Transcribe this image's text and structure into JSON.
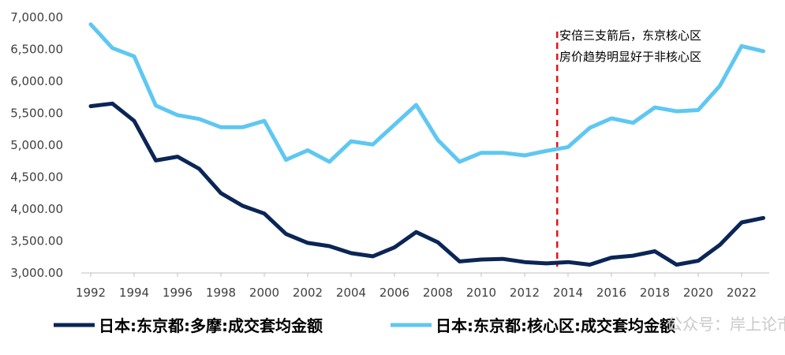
{
  "chart_data": {
    "type": "line",
    "x": [
      1992,
      1993,
      1994,
      1995,
      1996,
      1997,
      1998,
      1999,
      2000,
      2001,
      2002,
      2003,
      2004,
      2005,
      2006,
      2007,
      2008,
      2009,
      2010,
      2011,
      2012,
      2013,
      2014,
      2015,
      2016,
      2017,
      2018,
      2019,
      2020,
      2021,
      2022,
      2023
    ],
    "series": [
      {
        "name": "日本:东京都:多摩:成交套均金额",
        "color": "#0b2556",
        "values": [
          5610,
          5650,
          5380,
          4760,
          4820,
          4630,
          4250,
          4050,
          3930,
          3610,
          3470,
          3420,
          3310,
          3260,
          3400,
          3640,
          3480,
          3180,
          3210,
          3220,
          3170,
          3150,
          3170,
          3130,
          3240,
          3270,
          3340,
          3130,
          3190,
          3440,
          3790,
          3860
        ]
      },
      {
        "name": "日本:东京都:核心区:成交套均金额",
        "color": "#5ec7f2",
        "values": [
          6890,
          6520,
          6390,
          5620,
          5470,
          5410,
          5280,
          5280,
          5380,
          4770,
          4920,
          4740,
          5060,
          5010,
          5320,
          5630,
          5080,
          4740,
          4880,
          4880,
          4840,
          4910,
          4970,
          5270,
          5420,
          5350,
          5590,
          5530,
          5550,
          5930,
          6550,
          6470
        ]
      }
    ],
    "ylim": [
      3000,
      7000
    ],
    "yticks": [
      "3,000.00",
      "3,500.00",
      "4,000.00",
      "4,500.00",
      "5,000.00",
      "5,500.00",
      "6,000.00",
      "6,500.00",
      "7,000.00"
    ],
    "xticks": [
      "1992",
      "1994",
      "1996",
      "1998",
      "2000",
      "2002",
      "2004",
      "2006",
      "2008",
      "2010",
      "2012",
      "2014",
      "2016",
      "2018",
      "2020",
      "2022"
    ],
    "marker_year": 2013.5,
    "marker_color": "#e3151b",
    "annotation": [
      "安倍三支箭后，东京核心区",
      "房价趋势明显好于非核心区"
    ],
    "grid": false,
    "legend_position": "bottom"
  },
  "watermark": "公众号：岸上论市"
}
